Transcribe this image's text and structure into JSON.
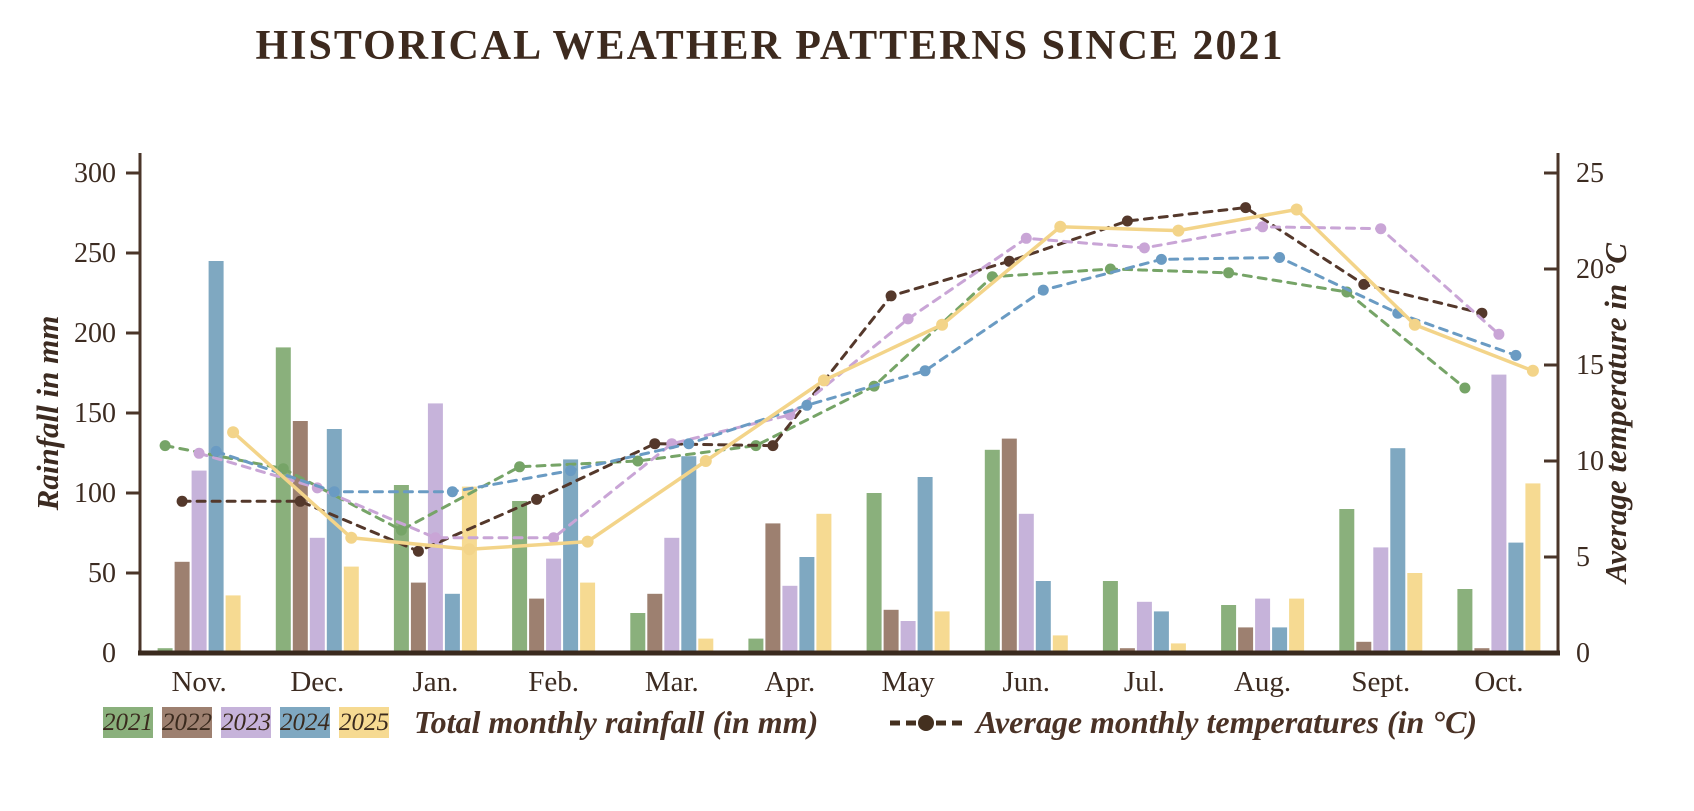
{
  "title": "HISTORICAL WEATHER PATTERNS SINCE 2021",
  "chart_data": {
    "type": "bar+line",
    "months": [
      "Nov.",
      "Dec.",
      "Jan.",
      "Feb.",
      "Mar.",
      "Apr.",
      "May",
      "Jun.",
      "Jul.",
      "Aug.",
      "Sept.",
      "Oct."
    ],
    "left_axis": {
      "label": "Rainfall in mm",
      "ticks": [
        0,
        50,
        100,
        150,
        200,
        250,
        300
      ],
      "max": 300
    },
    "right_axis": {
      "label": "Average temperature in °C",
      "ticks": [
        0,
        5,
        10,
        15,
        20,
        25
      ],
      "max": 25
    },
    "rainfall_mm": {
      "unit": "mm",
      "series": [
        {
          "name": "2021",
          "color": "#8ab07c",
          "values": [
            3,
            191,
            105,
            95,
            25,
            9,
            100,
            127,
            45,
            30,
            90,
            40
          ]
        },
        {
          "name": "2022",
          "color": "#9d8070",
          "values": [
            57,
            145,
            44,
            34,
            37,
            81,
            27,
            134,
            3,
            16,
            7,
            3
          ]
        },
        {
          "name": "2023",
          "color": "#c6b3da",
          "values": [
            114,
            72,
            156,
            59,
            72,
            42,
            20,
            87,
            32,
            34,
            66,
            174
          ]
        },
        {
          "name": "2024",
          "color": "#7fa8c1",
          "values": [
            245,
            140,
            37,
            121,
            123,
            60,
            110,
            45,
            26,
            16,
            128,
            69
          ]
        },
        {
          "name": "2025",
          "color": "#f6da92",
          "values": [
            36,
            54,
            104,
            44,
            9,
            87,
            26,
            11,
            6,
            34,
            50,
            106
          ]
        }
      ]
    },
    "temperature_c": {
      "unit": "°C",
      "series": [
        {
          "name": "2021",
          "color": "#76a467",
          "dashed": true,
          "values": [
            10.8,
            9.6,
            6.4,
            9.7,
            10.0,
            10.8,
            13.9,
            19.6,
            20.0,
            19.8,
            18.8,
            13.8
          ]
        },
        {
          "name": "2022",
          "color": "#54382b",
          "dashed": true,
          "values": [
            7.9,
            7.9,
            5.3,
            8.0,
            10.9,
            10.8,
            18.6,
            20.4,
            22.5,
            23.2,
            19.2,
            17.7
          ]
        },
        {
          "name": "2023",
          "color": "#c9a5d6",
          "dashed": true,
          "values": [
            10.4,
            8.6,
            6.0,
            6.0,
            10.9,
            12.4,
            17.4,
            21.6,
            21.1,
            22.2,
            22.1,
            16.6
          ]
        },
        {
          "name": "2024",
          "color": "#6a9bc3",
          "dashed": true,
          "values": [
            10.5,
            8.4,
            8.4,
            9.5,
            10.9,
            12.9,
            14.7,
            18.9,
            20.5,
            20.6,
            17.7,
            15.5
          ]
        },
        {
          "name": "2025",
          "color": "#f3d489",
          "dashed": false,
          "values": [
            11.5,
            6.0,
            5.4,
            5.8,
            10.0,
            14.2,
            17.1,
            22.2,
            22.0,
            23.1,
            17.1,
            14.7
          ]
        }
      ]
    }
  },
  "legend": {
    "rainfall_label": "Total monthly rainfall (in mm)",
    "temperature_label": "Average monthly temperatures (in °C)"
  },
  "colors": {
    "text": "#3c2b21",
    "axis": "#4a3529",
    "x_axis_line": "#3a2a1e"
  }
}
